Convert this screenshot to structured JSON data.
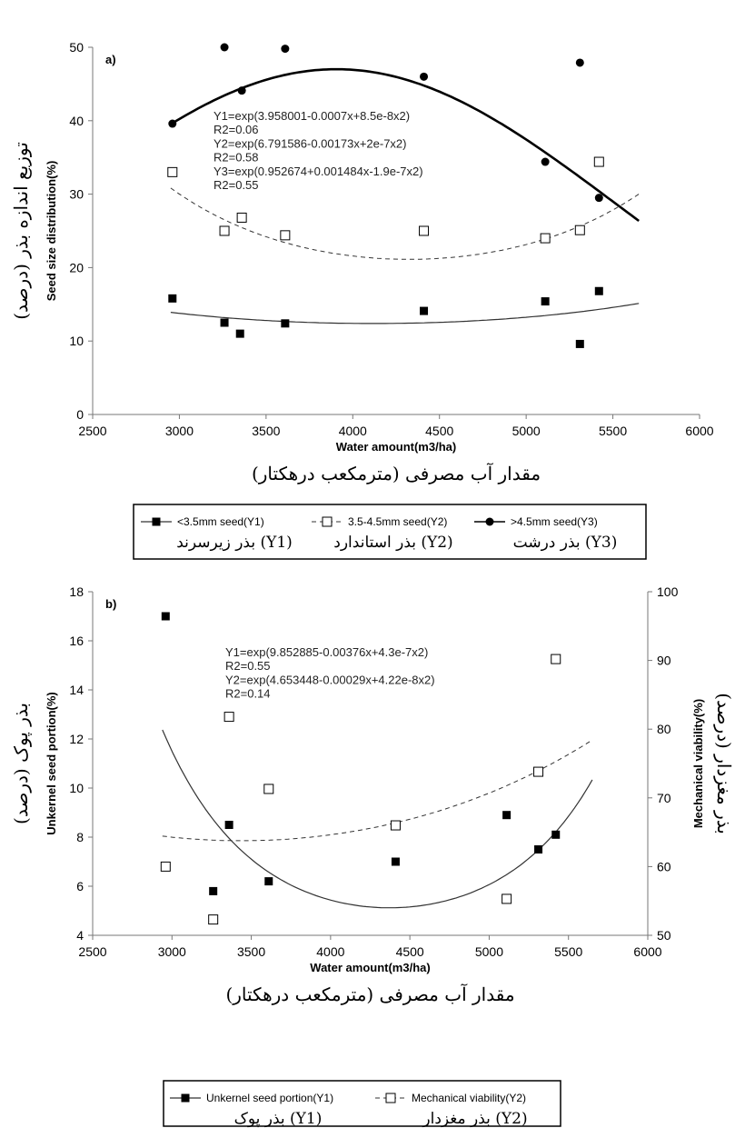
{
  "chart_data": [
    {
      "type": "scatter",
      "panel_label": "a)",
      "xlabel": "Water amount(m3/ha)",
      "xlabel_fa": "مقدار آب مصرفی (مترمکعب درهکتار)",
      "ylabel": "Seed size distribution(%)",
      "ylabel_fa": "توزیع اندازه بذر (درصد)",
      "xlim": [
        2500,
        6000
      ],
      "ylim": [
        0,
        50
      ],
      "xticks": [
        "2500",
        "3000",
        "3500",
        "4000",
        "4500",
        "5000",
        "5500",
        "6000"
      ],
      "yticks": [
        "0",
        "10",
        "20",
        "30",
        "40",
        "50"
      ],
      "equations": [
        "Y1=exp(3.958001-0.0007x+8.5e-8x2)",
        "R2=0.06",
        "Y2=exp(6.791586-0.00173x+2e-7x2)",
        "R2=0.58",
        "Y3=exp(0.952674+0.001484x-1.9e-7x2)",
        "R2=0.55"
      ],
      "series": [
        {
          "name": "<3.5mm seed(Y1)",
          "name_fa": "بذر زیرسرند (Y1)",
          "marker": "filled-square",
          "line": "solid-thin",
          "x": [
            2960,
            3260,
            3350,
            3610,
            4410,
            5110,
            5310,
            5420
          ],
          "y": [
            15.8,
            12.5,
            11.0,
            12.4,
            14.1,
            15.4,
            9.6,
            16.8
          ],
          "fit": {
            "a": 3.958001,
            "b": -0.0007,
            "c": 8.5e-08,
            "x_range": [
              2950,
              5650
            ]
          }
        },
        {
          "name": "3.5-4.5mm seed(Y2)",
          "name_fa": "بذر استاندارد (Y2)",
          "marker": "open-square",
          "line": "dashed",
          "x": [
            2960,
            3260,
            3360,
            3610,
            4410,
            5110,
            5310,
            5420
          ],
          "y": [
            33.0,
            25.0,
            26.8,
            24.4,
            25.0,
            24.0,
            25.1,
            34.4
          ],
          "fit": {
            "a": 6.791586,
            "b": -0.00173,
            "c": 2e-07,
            "x_range": [
              2950,
              5650
            ]
          }
        },
        {
          "name": ">4.5mm seed(Y3)",
          "name_fa": "بذر درشت (Y3)",
          "marker": "filled-circle",
          "line": "solid-thick",
          "x": [
            2960,
            3260,
            3360,
            3610,
            4410,
            5110,
            5310,
            5420
          ],
          "y": [
            39.6,
            50.0,
            44.1,
            49.8,
            46.0,
            34.4,
            47.9,
            29.5
          ],
          "fit": {
            "a": 0.952674,
            "b": 0.001484,
            "c": -1.9e-07,
            "x_range": [
              2950,
              5650
            ]
          }
        }
      ]
    },
    {
      "type": "scatter",
      "panel_label": "b)",
      "xlabel": "Water amount(m3/ha)",
      "xlabel_fa": "مقدار آب مصرفی (مترمکعب درهکتار)",
      "ylabel": "Unkernel seed portion(%)",
      "ylabel_fa": "بذر پوک (درصد)",
      "y2label": "Mechanical viability(%)",
      "y2label_fa": "بذر مغزدار (درصد)",
      "xlim": [
        2500,
        6000
      ],
      "ylim": [
        4,
        18
      ],
      "y2lim": [
        50,
        100
      ],
      "xticks": [
        "2500",
        "3000",
        "3500",
        "4000",
        "4500",
        "5000",
        "5500",
        "6000"
      ],
      "yticks": [
        "4",
        "6",
        "8",
        "10",
        "12",
        "14",
        "16",
        "18"
      ],
      "y2ticks": [
        "50",
        "60",
        "70",
        "80",
        "90",
        "100"
      ],
      "equations": [
        "Y1=exp(9.852885-0.00376x+4.3e-7x2)",
        "R2=0.55",
        "Y2=exp(4.653448-0.00029x+4.22e-8x2)",
        "R2=0.14"
      ],
      "series": [
        {
          "name": "Unkernel seed portion(Y1)",
          "name_fa": "بذر پوک (Y1)",
          "axis": "left",
          "marker": "filled-square",
          "line": "solid-thin",
          "x": [
            2960,
            3260,
            3360,
            3610,
            4410,
            5110,
            5310,
            5420
          ],
          "y": [
            17.0,
            5.8,
            8.5,
            6.2,
            7.0,
            8.9,
            7.5,
            8.1
          ],
          "fit": {
            "a": 9.852885,
            "b": -0.00376,
            "c": 4.3e-07,
            "x_range": [
              2940,
              5650
            ]
          }
        },
        {
          "name": "Mechanical viability(Y2)",
          "name_fa": "بذر مغزدار (Y2)",
          "axis": "right",
          "marker": "open-square",
          "line": "dashed",
          "x": [
            2960,
            3260,
            3360,
            3610,
            4410,
            5110,
            5310,
            5420
          ],
          "y": [
            60.0,
            52.3,
            81.8,
            71.3,
            66.0,
            55.3,
            73.8,
            90.2
          ],
          "fit": {
            "a": 4.653448,
            "b": -0.00029,
            "c": 4.22e-08,
            "x_range": [
              2940,
              5650
            ]
          }
        }
      ]
    }
  ]
}
